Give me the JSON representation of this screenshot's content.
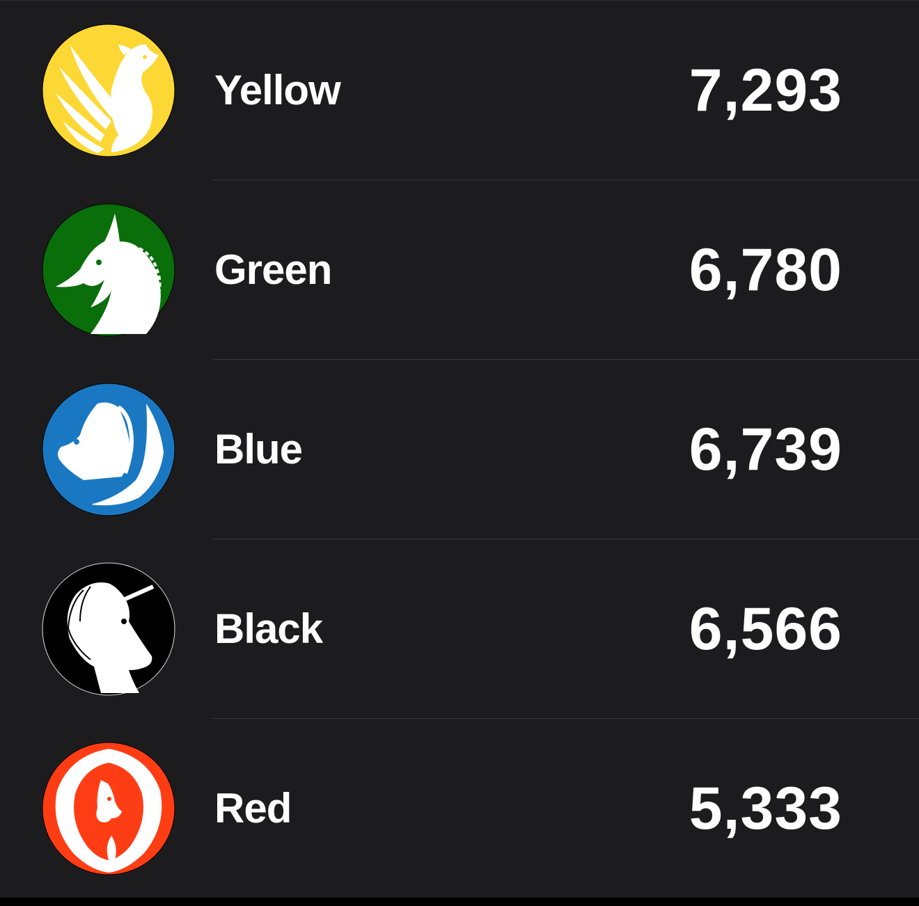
{
  "leaderboard": {
    "teams": [
      {
        "name": "Yellow",
        "points": "7,293",
        "color": "#fdd835",
        "icon": "phoenix-icon"
      },
      {
        "name": "Green",
        "points": "6,780",
        "color": "#0a6e0a",
        "icon": "dragon-icon"
      },
      {
        "name": "Blue",
        "points": "6,739",
        "color": "#1a78c2",
        "icon": "pegasus-icon"
      },
      {
        "name": "Black",
        "points": "6,566",
        "color": "#000000",
        "icon": "unicorn-icon"
      },
      {
        "name": "Red",
        "points": "5,333",
        "color": "#ff3d14",
        "icon": "firebird-icon"
      }
    ]
  }
}
